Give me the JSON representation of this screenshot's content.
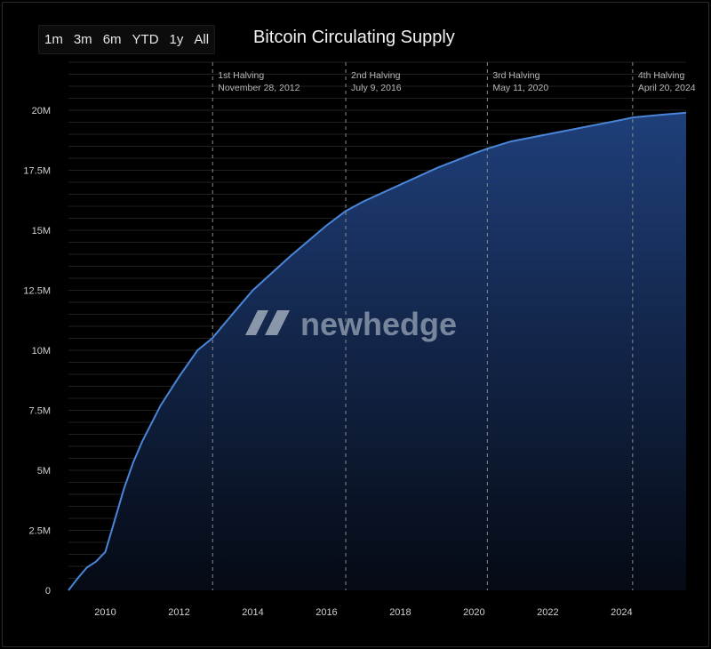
{
  "range_selector": {
    "options": [
      "1m",
      "3m",
      "6m",
      "YTD",
      "1y",
      "All"
    ]
  },
  "chart_data": {
    "type": "area",
    "title": "Bitcoin Circulating Supply",
    "xlabel": "",
    "ylabel": "",
    "xlim": [
      2009.0,
      2025.75
    ],
    "ylim": [
      0,
      22000000
    ],
    "x_ticks": [
      2010,
      2012,
      2014,
      2016,
      2018,
      2020,
      2022,
      2024
    ],
    "y_ticks": [
      {
        "value": 0,
        "label": "0"
      },
      {
        "value": 2500000,
        "label": "2.5M"
      },
      {
        "value": 5000000,
        "label": "5M"
      },
      {
        "value": 7500000,
        "label": "7.5M"
      },
      {
        "value": 10000000,
        "label": "10M"
      },
      {
        "value": 12500000,
        "label": "12.5M"
      },
      {
        "value": 15000000,
        "label": "15M"
      },
      {
        "value": 17500000,
        "label": "17.5M"
      },
      {
        "value": 20000000,
        "label": "20M"
      }
    ],
    "grid": true,
    "series": [
      {
        "color": "#4a86d8",
        "fill_top": "#1f3f7a",
        "fill_bottom": "#050a14",
        "x": [
          2009.0,
          2009.25,
          2009.5,
          2009.75,
          2010.0,
          2010.25,
          2010.5,
          2010.75,
          2011.0,
          2011.5,
          2012.0,
          2012.5,
          2012.9,
          2013.5,
          2014.0,
          2015.0,
          2016.0,
          2016.52,
          2017.0,
          2018.0,
          2019.0,
          2020.0,
          2020.36,
          2021.0,
          2022.0,
          2023.0,
          2024.0,
          2024.3,
          2025.0,
          2025.75
        ],
        "y": [
          0,
          500000,
          950000,
          1200000,
          1600000,
          2900000,
          4200000,
          5300000,
          6200000,
          7700000,
          8900000,
          10000000,
          10500000,
          11600000,
          12500000,
          13900000,
          15200000,
          15800000,
          16200000,
          16900000,
          17600000,
          18200000,
          18400000,
          18700000,
          19000000,
          19300000,
          19600000,
          19700000,
          19800000,
          19900000
        ]
      }
    ],
    "events": [
      {
        "x": 2012.91,
        "label": "1st Halving",
        "date": "November 28, 2012"
      },
      {
        "x": 2016.52,
        "label": "2nd Halving",
        "date": "July 9, 2016"
      },
      {
        "x": 2020.36,
        "label": "3rd Halving",
        "date": "May 11, 2020"
      },
      {
        "x": 2024.3,
        "label": "4th Halving",
        "date": "April 20, 2024"
      }
    ],
    "watermark": "newhedge"
  }
}
